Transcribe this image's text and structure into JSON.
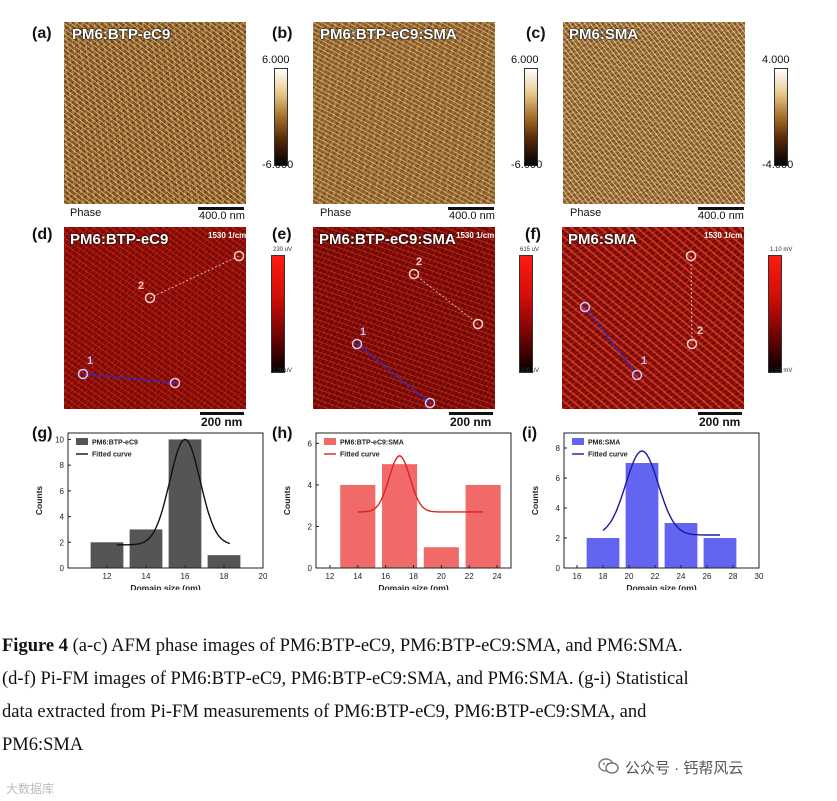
{
  "row1": {
    "panels": [
      {
        "label": "(a)",
        "title": "PM6:BTP-eC9",
        "phase": "Phase",
        "scale": "400.0 nm"
      },
      {
        "label": "(b)",
        "title": "PM6:BTP-eC9:SMA",
        "phase": "Phase",
        "scale": "400.0 nm"
      },
      {
        "label": "(c)",
        "title": "PM6:SMA",
        "phase": "Phase",
        "scale": "400.0 nm"
      }
    ],
    "colorbars": [
      {
        "top": "6.000",
        "bottom": "-6.000"
      },
      {
        "top": "6.000",
        "bottom": "-6.000"
      },
      {
        "top": "4.000",
        "bottom": "-4.000"
      }
    ]
  },
  "row2": {
    "panels": [
      {
        "label": "(d)",
        "title": "PM6:BTP-eC9",
        "freq": "1530 1/cm",
        "scale": "200 nm"
      },
      {
        "label": "(e)",
        "title": "PM6:BTP-eC9:SMA",
        "freq": "1530 1/cm",
        "scale": "200 nm"
      },
      {
        "label": "(f)",
        "title": "PM6:SMA",
        "freq": "1530 1/cm",
        "scale": "200 nm"
      }
    ],
    "colorbars": [
      {
        "top": "230 uV",
        "bottom": "120 uV"
      },
      {
        "top": "615 uV",
        "bottom": "200 uV"
      },
      {
        "top": "1.10 mV",
        "bottom": "0.66 mV"
      }
    ],
    "marker_labels": [
      "1",
      "2"
    ]
  },
  "chart_data": [
    {
      "panel_label": "(g)",
      "type": "bar",
      "x": [
        12,
        14,
        16,
        18
      ],
      "values": [
        2,
        3,
        10,
        1
      ],
      "series_names": [
        "PM6:BTP-eC9",
        "Fitted curve"
      ],
      "xlabel": "Domain size (nm)",
      "ylabel": "Counts",
      "xlim": [
        10,
        20
      ],
      "ylim": [
        0,
        10.5
      ],
      "xticks": [
        12,
        14,
        16,
        18,
        20
      ],
      "yticks": [
        0,
        2,
        4,
        6,
        8,
        10
      ],
      "fit": {
        "amplitude": 8.2,
        "center": 16.0,
        "sigma": 0.78,
        "offset": 1.8,
        "range": [
          12.5,
          18.3
        ]
      },
      "bar_color": "#555555",
      "curve_color": "#111111",
      "legend": "top-left"
    },
    {
      "panel_label": "(h)",
      "type": "bar",
      "x": [
        14,
        17,
        20,
        23
      ],
      "values": [
        4,
        5,
        1,
        4
      ],
      "series_names": [
        "PM6:BTP-eC9:SMA",
        "Fitted curve"
      ],
      "xlabel": "Domain size (nm)",
      "ylabel": "Counts",
      "xlim": [
        11,
        25
      ],
      "ylim": [
        0,
        6.5
      ],
      "xticks": [
        12,
        14,
        16,
        18,
        20,
        22,
        24
      ],
      "yticks": [
        0,
        2,
        4,
        6
      ],
      "fit": {
        "amplitude": 2.7,
        "center": 17.0,
        "sigma": 0.75,
        "offset": 2.7,
        "range": [
          14.0,
          23.0
        ]
      },
      "bar_color": "#f06a6a",
      "curve_color": "#e02020",
      "legend": "top-left"
    },
    {
      "panel_label": "(i)",
      "type": "bar",
      "x": [
        18,
        21,
        24,
        27
      ],
      "values": [
        2,
        7,
        3,
        2
      ],
      "series_names": [
        "PM6:SMA",
        "Fitted curve"
      ],
      "xlabel": "Domain size (nm)",
      "ylabel": "Counts",
      "xlim": [
        15,
        30
      ],
      "ylim": [
        0,
        9
      ],
      "xticks": [
        16,
        18,
        20,
        22,
        24,
        26,
        28,
        30
      ],
      "yticks": [
        0,
        2,
        4,
        6,
        8
      ],
      "fit": {
        "amplitude": 5.6,
        "center": 21.0,
        "sigma": 1.25,
        "offset": 2.2,
        "range": [
          18.0,
          27.0
        ]
      },
      "bar_color": "#6464f2",
      "curve_color": "#1a1aa0",
      "legend": "top-left"
    }
  ],
  "caption": {
    "figure": "Figure 4",
    "lines": [
      " (a-c) AFM phase images of PM6:BTP-eC9, PM6:BTP-eC9:SMA, and PM6:SMA.",
      "(d-f) Pi-FM images of PM6:BTP-eC9, PM6:BTP-eC9:SMA, and PM6:SMA. (g-i) Statistical",
      "data extracted from Pi-FM measurements of PM6:BTP-eC9, PM6:BTP-eC9:SMA, and",
      "PM6:SMA"
    ]
  },
  "watermark": {
    "text": "公众号 · 钙帮风云",
    "corner": "大数据库"
  }
}
